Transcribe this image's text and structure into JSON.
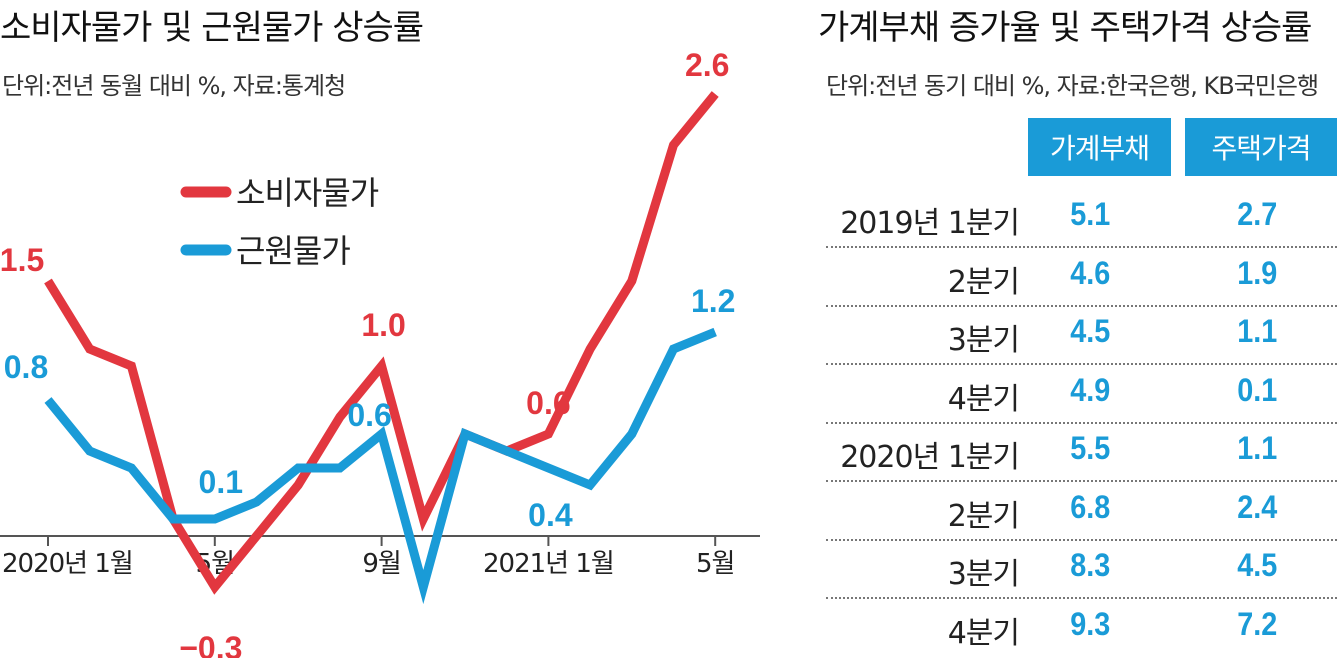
{
  "left": {
    "title": "소비자물가 및 근원물가 상승률",
    "subtitle": "단위:전년 동월 대비 %, 자료:통계청"
  },
  "right": {
    "title": "가계부채 증가율 및 주택가격 상승률",
    "subtitle": "단위:전년 동기 대비 %, 자료:한국은행, KB국민은행",
    "col1": "가계부채",
    "col2": "주택가격",
    "rows": [
      {
        "label": "2019년  1분기",
        "debt": "5.1",
        "house": "2.7"
      },
      {
        "label": "2분기",
        "debt": "4.6",
        "house": "1.9"
      },
      {
        "label": "3분기",
        "debt": "4.5",
        "house": "1.1"
      },
      {
        "label": "4분기",
        "debt": "4.9",
        "house": "0.1"
      },
      {
        "label": "2020년  1분기",
        "debt": "5.5",
        "house": "1.1"
      },
      {
        "label": "2분기",
        "debt": "6.8",
        "house": "2.4"
      },
      {
        "label": "3분기",
        "debt": "8.3",
        "house": "4.5"
      },
      {
        "label": "4분기",
        "debt": "9.3",
        "house": "7.2"
      }
    ]
  },
  "colors": {
    "red": "#e2373f",
    "blue": "#1a9bd7"
  },
  "chart_data": [
    {
      "type": "line",
      "title": "소비자물가 및 근원물가 상승률",
      "subtitle": "단위:전년 동월 대비 %, 자료:통계청",
      "x": [
        "2020-01",
        "2020-02",
        "2020-03",
        "2020-04",
        "2020-05",
        "2020-06",
        "2020-07",
        "2020-08",
        "2020-09",
        "2020-10",
        "2020-11",
        "2020-12",
        "2021-01",
        "2021-02",
        "2021-03",
        "2021-04",
        "2021-05"
      ],
      "xticks": [
        {
          "label": "2020년 1월",
          "index": 0
        },
        {
          "label": "5월",
          "index": 4
        },
        {
          "label": "9월",
          "index": 8
        },
        {
          "label": "2021년 1월",
          "index": 12
        },
        {
          "label": "5월",
          "index": 16
        }
      ],
      "series": [
        {
          "name": "소비자물가",
          "color": "#e2373f",
          "values": [
            1.5,
            1.1,
            1.0,
            0.1,
            -0.3,
            0.0,
            0.3,
            0.7,
            1.0,
            0.1,
            0.6,
            0.5,
            0.6,
            1.1,
            1.5,
            2.3,
            2.6
          ]
        },
        {
          "name": "근원물가",
          "color": "#1a9bd7",
          "values": [
            0.8,
            0.5,
            0.4,
            0.1,
            0.1,
            0.2,
            0.4,
            0.4,
            0.6,
            -0.3,
            0.6,
            0.5,
            0.4,
            0.3,
            0.6,
            1.1,
            1.2
          ]
        }
      ],
      "data_labels": [
        {
          "series": 0,
          "index": 0,
          "text": "1.5"
        },
        {
          "series": 0,
          "index": 4,
          "text": "−0.3"
        },
        {
          "series": 0,
          "index": 8,
          "text": "1.0"
        },
        {
          "series": 0,
          "index": 12,
          "text": "0.6"
        },
        {
          "series": 0,
          "index": 16,
          "text": "2.6"
        },
        {
          "series": 1,
          "index": 0,
          "text": "0.8"
        },
        {
          "series": 1,
          "index": 4,
          "text": "0.1"
        },
        {
          "series": 1,
          "index": 8,
          "text": "0.6"
        },
        {
          "series": 1,
          "index": 12,
          "text": "0.4"
        },
        {
          "series": 1,
          "index": 16,
          "text": "1.2"
        }
      ],
      "legend": "upper-left",
      "grid": false
    },
    {
      "type": "table",
      "title": "가계부채 증가율 및 주택가격 상승률",
      "columns": [
        "가계부채",
        "주택가격"
      ],
      "categories": [
        "2019년 1분기",
        "2분기",
        "3분기",
        "4분기",
        "2020년 1분기",
        "2분기",
        "3분기",
        "4분기"
      ],
      "series": [
        {
          "name": "가계부채",
          "values": [
            5.1,
            4.6,
            4.5,
            4.9,
            5.5,
            6.8,
            8.3,
            9.3
          ]
        },
        {
          "name": "주택가격",
          "values": [
            2.7,
            1.9,
            1.1,
            0.1,
            1.1,
            2.4,
            4.5,
            7.2
          ]
        }
      ]
    }
  ]
}
